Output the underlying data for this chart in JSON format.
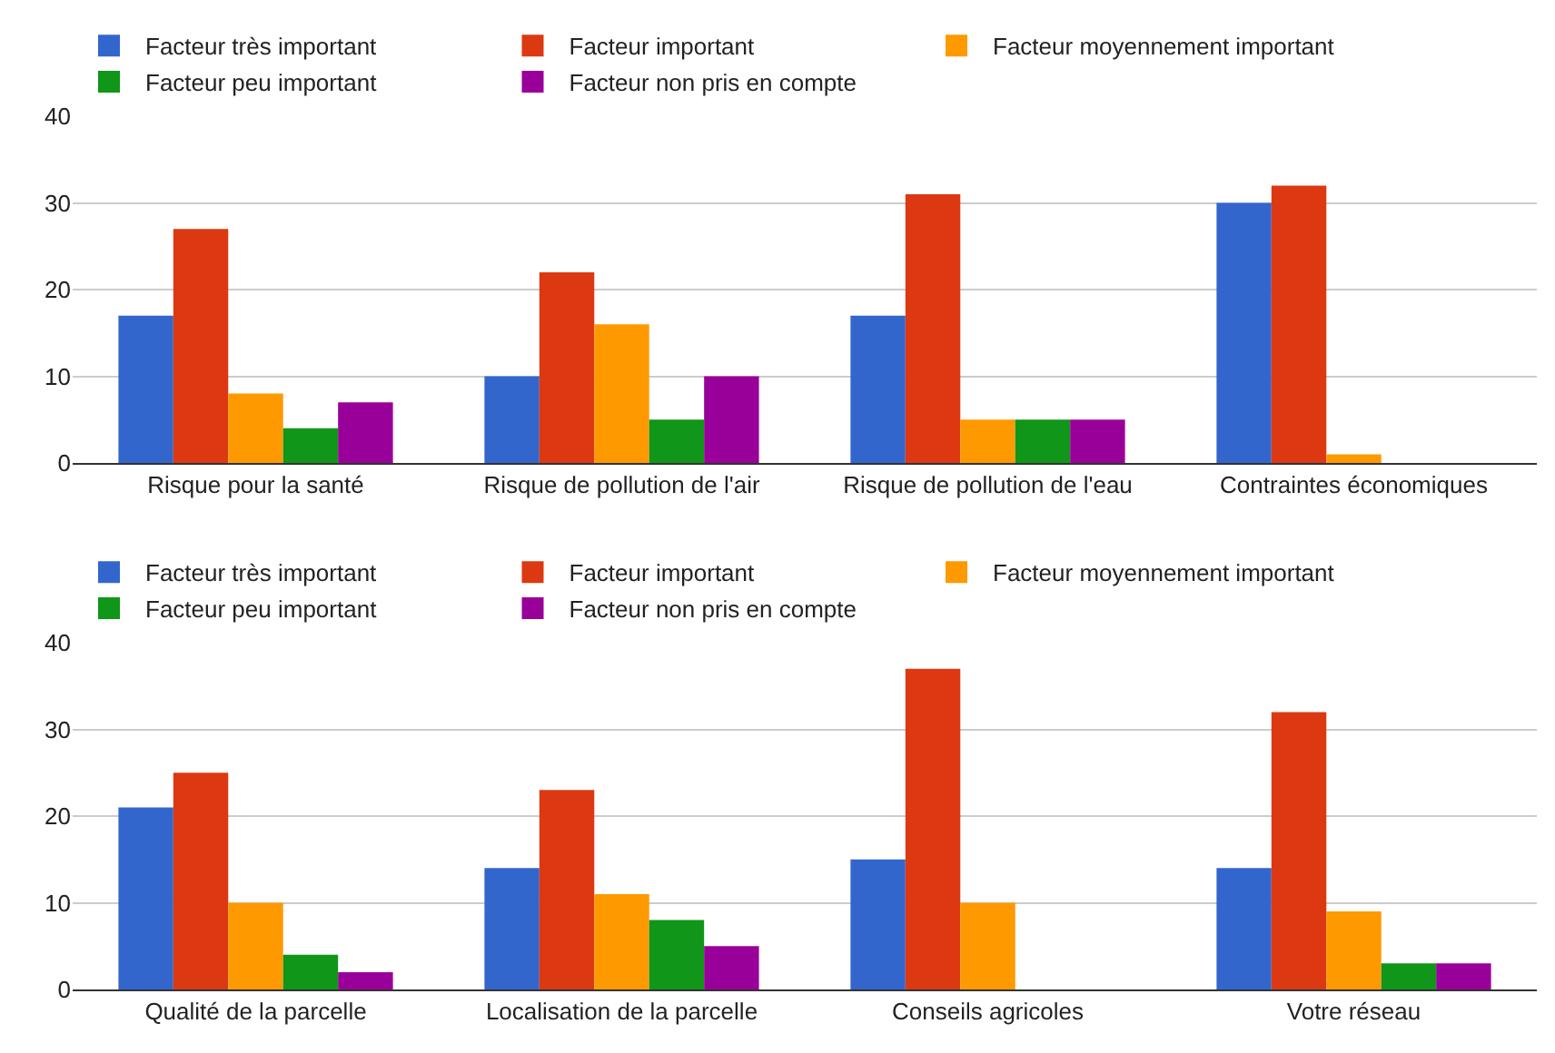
{
  "chart_data": [
    {
      "type": "bar",
      "categories": [
        "Risque pour la santé",
        "Risque de pollution de l'air",
        "Risque de pollution de l'eau",
        "Contraintes économiques"
      ],
      "series": [
        {
          "name": "Facteur très important",
          "color": "#3366cc",
          "values": [
            17,
            10,
            17,
            30
          ]
        },
        {
          "name": "Facteur important",
          "color": "#dc3912",
          "values": [
            27,
            22,
            31,
            32
          ]
        },
        {
          "name": "Facteur moyennement important",
          "color": "#ff9900",
          "values": [
            8,
            16,
            5,
            1
          ]
        },
        {
          "name": "Facteur peu important",
          "color": "#109618",
          "values": [
            4,
            5,
            5,
            0
          ]
        },
        {
          "name": "Facteur non pris en compte",
          "color": "#990099",
          "values": [
            7,
            10,
            5,
            0
          ]
        }
      ],
      "ylim": [
        0,
        40
      ],
      "yticks": [
        0,
        10,
        20,
        30,
        40
      ],
      "grid": "y",
      "legend": "top"
    },
    {
      "type": "bar",
      "categories": [
        "Qualité de la parcelle",
        "Localisation de la parcelle",
        "Conseils agricoles",
        "Votre réseau"
      ],
      "series": [
        {
          "name": "Facteur très important",
          "color": "#3366cc",
          "values": [
            21,
            14,
            15,
            14
          ]
        },
        {
          "name": "Facteur important",
          "color": "#dc3912",
          "values": [
            25,
            23,
            37,
            32
          ]
        },
        {
          "name": "Facteur moyennement important",
          "color": "#ff9900",
          "values": [
            10,
            11,
            10,
            9
          ]
        },
        {
          "name": "Facteur peu important",
          "color": "#109618",
          "values": [
            4,
            8,
            0,
            3
          ]
        },
        {
          "name": "Facteur non pris en compte",
          "color": "#990099",
          "values": [
            2,
            5,
            0,
            3
          ]
        }
      ],
      "ylim": [
        0,
        40
      ],
      "yticks": [
        0,
        10,
        20,
        30,
        40
      ],
      "grid": "y",
      "legend": "top"
    }
  ]
}
